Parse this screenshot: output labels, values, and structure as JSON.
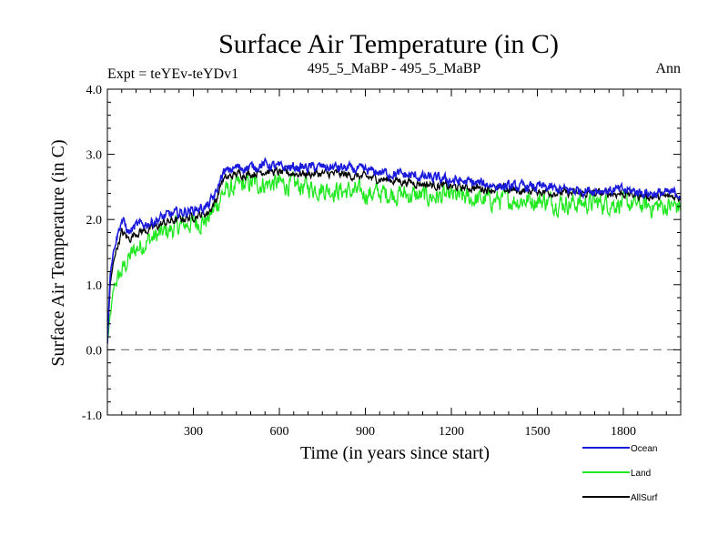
{
  "chart_data": {
    "type": "line",
    "title": "Surface Air Temperature (in C)",
    "subtitle_left": "Expt = teYEv-teYDv1",
    "subtitle_center": "495_5_MaBP - 495_5_MaBP",
    "subtitle_right": "Ann",
    "xlabel": "Time (in years since start)",
    "ylabel": "Surface Air Temperature (in C)",
    "xlim": [
      0,
      2000
    ],
    "ylim": [
      -1.0,
      4.0
    ],
    "x_ticks": [
      300,
      600,
      900,
      1200,
      1500,
      1800
    ],
    "x_tick_labels": [
      "300",
      "600",
      "900",
      "1200",
      "1500",
      "1800"
    ],
    "y_ticks": [
      -1.0,
      0.0,
      1.0,
      2.0,
      3.0,
      4.0
    ],
    "y_tick_labels": [
      "-1.0",
      "0.0",
      "1.0",
      "2.0",
      "3.0",
      "4.0"
    ],
    "reference_line": {
      "y": 0.0,
      "style": "dashed",
      "color": "#808080"
    },
    "legend_position": "bottom-right",
    "series": [
      {
        "name": "Ocean",
        "color": "#1a1adc",
        "x": [
          0,
          10,
          25,
          50,
          75,
          100,
          150,
          200,
          250,
          300,
          350,
          380,
          400,
          450,
          500,
          550,
          600,
          700,
          800,
          900,
          1000,
          1100,
          1200,
          1300,
          1400,
          1500,
          1600,
          1700,
          1800,
          1900,
          2000
        ],
        "values": [
          0.1,
          1.2,
          1.6,
          2.0,
          1.8,
          1.9,
          1.95,
          2.05,
          2.1,
          2.15,
          2.2,
          2.4,
          2.7,
          2.8,
          2.8,
          2.85,
          2.8,
          2.8,
          2.8,
          2.75,
          2.7,
          2.65,
          2.6,
          2.55,
          2.5,
          2.5,
          2.45,
          2.45,
          2.45,
          2.4,
          2.4
        ]
      },
      {
        "name": "Land",
        "color": "#22e822",
        "x": [
          0,
          10,
          25,
          50,
          75,
          100,
          150,
          200,
          250,
          300,
          350,
          380,
          400,
          450,
          500,
          550,
          600,
          700,
          800,
          900,
          1000,
          1100,
          1200,
          1300,
          1400,
          1500,
          1600,
          1700,
          1800,
          1900,
          2000
        ],
        "values": [
          0.1,
          0.5,
          1.0,
          1.2,
          1.4,
          1.55,
          1.7,
          1.8,
          1.9,
          1.95,
          2.0,
          2.2,
          2.4,
          2.5,
          2.55,
          2.55,
          2.55,
          2.5,
          2.45,
          2.4,
          2.4,
          2.35,
          2.35,
          2.3,
          2.3,
          2.3,
          2.25,
          2.25,
          2.25,
          2.2,
          2.2
        ]
      },
      {
        "name": "AllSurf",
        "color": "#000000",
        "x": [
          0,
          10,
          25,
          50,
          75,
          100,
          150,
          200,
          250,
          300,
          350,
          380,
          400,
          450,
          500,
          550,
          600,
          700,
          800,
          900,
          1000,
          1100,
          1200,
          1300,
          1400,
          1500,
          1600,
          1700,
          1800,
          1900,
          2000
        ],
        "values": [
          0.1,
          1.0,
          1.45,
          1.8,
          1.7,
          1.8,
          1.85,
          1.95,
          2.0,
          2.05,
          2.1,
          2.3,
          2.6,
          2.7,
          2.7,
          2.75,
          2.72,
          2.7,
          2.7,
          2.65,
          2.6,
          2.55,
          2.5,
          2.48,
          2.45,
          2.44,
          2.4,
          2.4,
          2.4,
          2.35,
          2.35
        ]
      }
    ]
  }
}
